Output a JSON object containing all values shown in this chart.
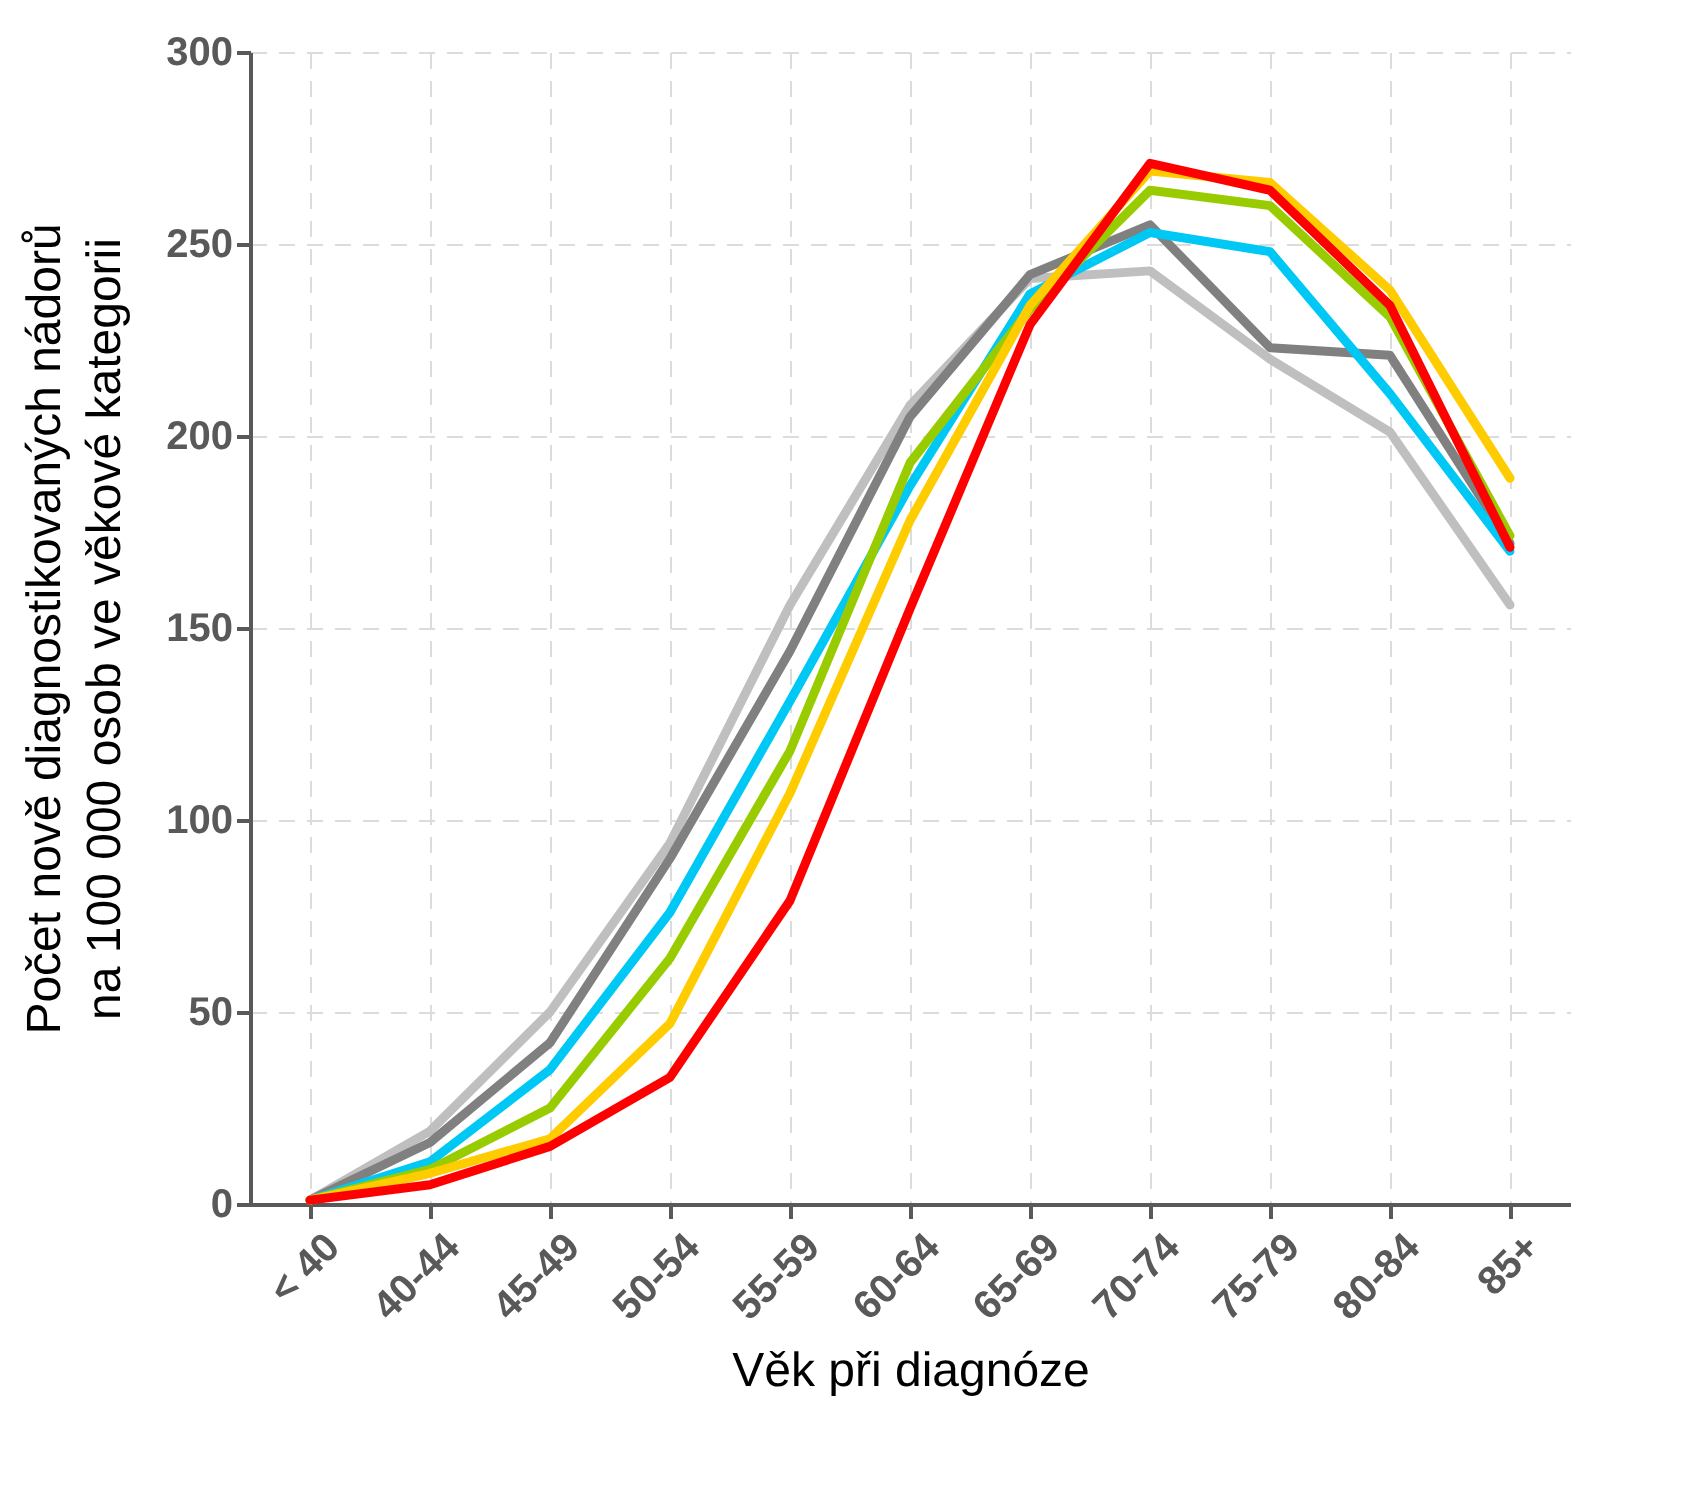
{
  "chart_data": {
    "type": "line",
    "xlabel": "Věk při diagnóze",
    "ylabel": "Počet nově diagnostikovaných nádorů\nna 100 000 osob ve věkové kategorii",
    "categories": [
      "< 40",
      "40-44",
      "45-49",
      "50-54",
      "55-59",
      "60-64",
      "65-69",
      "70-74",
      "75-79",
      "80-84",
      "85+"
    ],
    "series": [
      {
        "color": "#bfbfbf",
        "values": [
          1,
          19,
          50,
          94,
          156,
          208,
          241,
          243,
          220,
          201,
          156
        ]
      },
      {
        "color": "#808080",
        "values": [
          1,
          16,
          42,
          90,
          144,
          205,
          242,
          255,
          223,
          221,
          172
        ]
      },
      {
        "color": "#00c8f5",
        "values": [
          1,
          11,
          35,
          76,
          131,
          187,
          237,
          253,
          248,
          211,
          170
        ]
      },
      {
        "color": "#99cc00",
        "values": [
          1,
          9,
          25,
          64,
          118,
          193,
          233,
          264,
          260,
          231,
          174
        ]
      },
      {
        "color": "#ffcc00",
        "values": [
          1,
          8,
          17,
          47,
          107,
          178,
          234,
          269,
          266,
          238,
          189
        ]
      },
      {
        "color": "#ff0000",
        "values": [
          1,
          5,
          15,
          33,
          79,
          155,
          229,
          271,
          264,
          234,
          171
        ]
      }
    ],
    "ylim": [
      0,
      300
    ],
    "yticks": [
      0,
      50,
      100,
      150,
      200,
      250,
      300
    ],
    "grid": true,
    "line_style": "solid",
    "marker": "none"
  }
}
